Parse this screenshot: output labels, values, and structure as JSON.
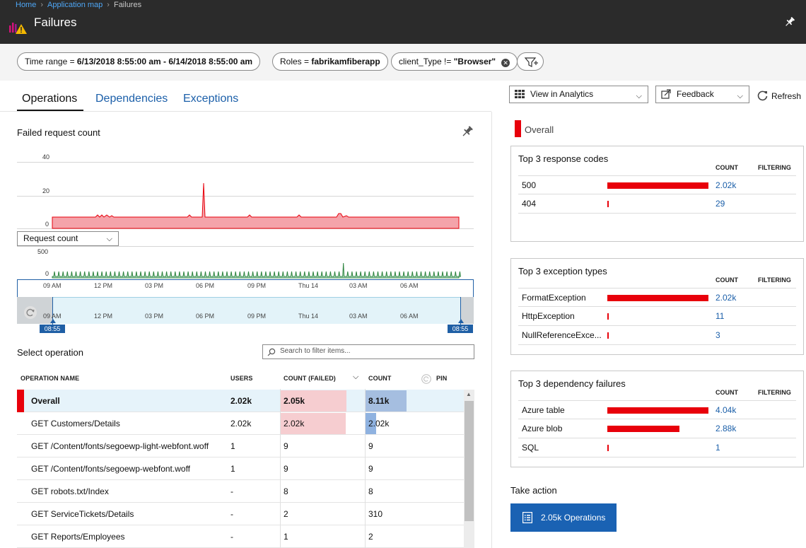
{
  "breadcrumb": {
    "home": "Home",
    "app_map": "Application map",
    "current": "Failures"
  },
  "header": {
    "title": "Failures"
  },
  "filters": {
    "time_range": {
      "key": "Time range = ",
      "value": "6/13/2018 8:55:00 am - 6/14/2018 8:55:00 am"
    },
    "roles": {
      "key": "Roles = ",
      "value": "fabrikamfiberapp"
    },
    "client_type": {
      "key": "client_Type != ",
      "value": "\"Browser\""
    }
  },
  "tabs": [
    "Operations",
    "Dependencies",
    "Exceptions"
  ],
  "toolbar": {
    "view_analytics": "View in Analytics",
    "feedback": "Feedback",
    "refresh": "Refresh"
  },
  "chart": {
    "title": "Failed request count",
    "y_ticks": [
      "40",
      "20",
      "0"
    ],
    "metric_select": "Request count",
    "volume_y_ticks": [
      "500",
      "0"
    ],
    "x_ticks": [
      "09 AM",
      "12 PM",
      "03 PM",
      "06 PM",
      "09 PM",
      "Thu 14",
      "03 AM",
      "06 AM"
    ],
    "brush_start": "08:55",
    "brush_end": "08:55",
    "failed_color": "#e8000b",
    "volume_color": "#2e8540"
  },
  "operations": {
    "section_title": "Select operation",
    "filter_placeholder": "Search to filter items...",
    "headers": {
      "name": "OPERATION NAME",
      "users": "USERS",
      "count_failed": "COUNT (FAILED)",
      "count": "COUNT",
      "pin": "PIN"
    },
    "rows": [
      {
        "name": "Overall",
        "users": "2.02k",
        "failed": "2.05k",
        "count": "8.11k",
        "failed_frac": 1.0,
        "count_frac": 1.0
      },
      {
        "name": "GET Customers/Details",
        "users": "2.02k",
        "failed": "2.02k",
        "count": "2.02k",
        "failed_frac": 0.99,
        "count_frac": 0.25
      },
      {
        "name": "GET /Content/fonts/segoewp-light-webfont.woff",
        "users": "1",
        "failed": "9",
        "count": "9",
        "failed_frac": 0.0,
        "count_frac": 0.0
      },
      {
        "name": "GET /Content/fonts/segoewp-webfont.woff",
        "users": "1",
        "failed": "9",
        "count": "9",
        "failed_frac": 0.0,
        "count_frac": 0.0
      },
      {
        "name": "GET robots.txt/Index",
        "users": "-",
        "failed": "8",
        "count": "8",
        "failed_frac": 0.0,
        "count_frac": 0.0
      },
      {
        "name": "GET ServiceTickets/Details",
        "users": "-",
        "failed": "2",
        "count": "310",
        "failed_frac": 0.0,
        "count_frac": 0.0
      },
      {
        "name": "GET Reports/Employees",
        "users": "-",
        "failed": "1",
        "count": "2",
        "failed_frac": 0.0,
        "count_frac": 0.0
      }
    ]
  },
  "side": {
    "legend": "Overall",
    "count_header": "COUNT",
    "filtering_header": "FILTERING",
    "response_codes": {
      "title": "Top 3 response codes",
      "items": [
        {
          "label": "500",
          "count": "2.02k",
          "frac": 1.0
        },
        {
          "label": "404",
          "count": "29",
          "frac": 0.014
        }
      ]
    },
    "exception_types": {
      "title": "Top 3 exception types",
      "items": [
        {
          "label": "FormatException",
          "count": "2.02k",
          "frac": 1.0
        },
        {
          "label": "HttpException",
          "count": "11",
          "frac": 0.005
        },
        {
          "label": "NullReferenceExce...",
          "count": "3",
          "frac": 0.002
        }
      ]
    },
    "dependency_failures": {
      "title": "Top 3 dependency failures",
      "items": [
        {
          "label": "Azure table",
          "count": "4.04k",
          "frac": 1.0
        },
        {
          "label": "Azure blob",
          "count": "2.88k",
          "frac": 0.71
        },
        {
          "label": "SQL",
          "count": "1",
          "frac": 0.0
        }
      ]
    },
    "take_action": {
      "title": "Take action",
      "button": "2.05k Operations"
    }
  }
}
